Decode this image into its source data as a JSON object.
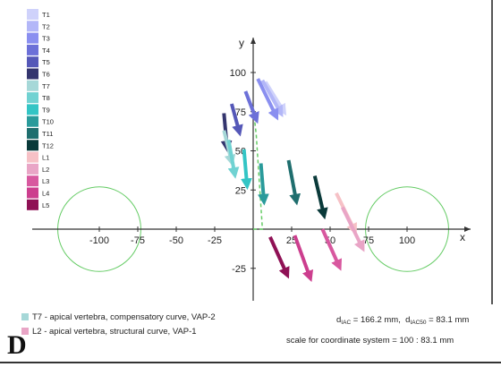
{
  "chart_data": {
    "type": "vector-field",
    "xlabel": "x",
    "ylabel": "y",
    "xlim": [
      -150,
      150
    ],
    "ylim": [
      -35,
      135
    ],
    "x_ticks": [
      -100,
      -75,
      -50,
      -25,
      25,
      50,
      75,
      100
    ],
    "y_ticks": [
      100,
      75,
      50,
      25,
      -25
    ],
    "circles": [
      {
        "center": [
          -100,
          0
        ],
        "radius": 27
      },
      {
        "center": [
          100,
          0
        ],
        "radius": 27
      }
    ],
    "vectors": [
      {
        "name": "T1",
        "color": "#cfd2fb",
        "from": [
          8,
          94
        ],
        "to": [
          20,
          75
        ]
      },
      {
        "name": "T2",
        "color": "#b3b7f8",
        "from": [
          6,
          95
        ],
        "to": [
          18,
          74
        ]
      },
      {
        "name": "T3",
        "color": "#8a8ff0",
        "from": [
          3,
          96
        ],
        "to": [
          15,
          72
        ]
      },
      {
        "name": "T4",
        "color": "#6c70d8",
        "from": [
          -5,
          88
        ],
        "to": [
          2,
          70
        ]
      },
      {
        "name": "T5",
        "color": "#5558b8",
        "from": [
          -14,
          80
        ],
        "to": [
          -9,
          62
        ]
      },
      {
        "name": "T6",
        "color": "#34356e",
        "from": [
          -19,
          74
        ],
        "to": [
          -17,
          52
        ]
      },
      {
        "name": "T7",
        "color": "#a6d8d8",
        "from": [
          -19,
          63
        ],
        "to": [
          -14,
          43
        ]
      },
      {
        "name": "T8",
        "color": "#70d2d2",
        "from": [
          -16,
          57
        ],
        "to": [
          -12,
          35
        ]
      },
      {
        "name": "T9",
        "color": "#33c5c5",
        "from": [
          -6,
          51
        ],
        "to": [
          -4,
          28
        ]
      },
      {
        "name": "T10",
        "color": "#2a9b9b",
        "from": [
          5,
          42
        ],
        "to": [
          7,
          18
        ]
      },
      {
        "name": "T11",
        "color": "#1f6e6e",
        "from": [
          23,
          44
        ],
        "to": [
          28,
          18
        ]
      },
      {
        "name": "T12",
        "color": "#0a3a3a",
        "from": [
          40,
          34
        ],
        "to": [
          46,
          9
        ]
      },
      {
        "name": "L1",
        "color": "#f6c1c6",
        "from": [
          54,
          23
        ],
        "to": [
          66,
          -1
        ]
      },
      {
        "name": "L2",
        "color": "#e9a5c6",
        "from": [
          58,
          14
        ],
        "to": [
          71,
          -12
        ]
      },
      {
        "name": "L3",
        "color": "#d8589f",
        "from": [
          45,
          0
        ],
        "to": [
          56,
          -24
        ]
      },
      {
        "name": "L4",
        "color": "#cc3e8e",
        "from": [
          27,
          -4
        ],
        "to": [
          37,
          -31
        ]
      },
      {
        "name": "L5",
        "color": "#8f1155",
        "from": [
          11,
          -5
        ],
        "to": [
          22,
          -29
        ]
      }
    ],
    "dashed_path": {
      "color": "#66cc66",
      "points": [
        [
          0,
          0
        ],
        [
          6,
          0
        ],
        [
          4,
          30
        ],
        [
          2,
          60
        ],
        [
          0,
          78
        ]
      ]
    },
    "legend": [
      {
        "label": "T1",
        "color": "#cfd2fb"
      },
      {
        "label": "T2",
        "color": "#b3b7f8"
      },
      {
        "label": "T3",
        "color": "#8a8ff0"
      },
      {
        "label": "T4",
        "color": "#6c70d8"
      },
      {
        "label": "T5",
        "color": "#5558b8"
      },
      {
        "label": "T6",
        "color": "#34356e"
      },
      {
        "label": "T7",
        "color": "#a6d8d8"
      },
      {
        "label": "T8",
        "color": "#70d2d2"
      },
      {
        "label": "T9",
        "color": "#33c5c5"
      },
      {
        "label": "T10",
        "color": "#2a9b9b"
      },
      {
        "label": "T11",
        "color": "#1f6e6e"
      },
      {
        "label": "T12",
        "color": "#0a3a3a"
      },
      {
        "label": "L1",
        "color": "#f6c1c6"
      },
      {
        "label": "L2",
        "color": "#e9a5c6"
      },
      {
        "label": "L3",
        "color": "#d8589f"
      },
      {
        "label": "L4",
        "color": "#cc3e8e"
      },
      {
        "label": "L5",
        "color": "#8f1155"
      }
    ]
  },
  "notes": {
    "t7": {
      "color": "#a6d8d8",
      "text": "T7 - apical vertebra, compensatory curve, VAP-2"
    },
    "l2": {
      "color": "#e9a5c6",
      "text": "L2 - apical vertebra, structural curve, VAP-1"
    }
  },
  "distances": {
    "d1_main": "d",
    "d1_sub": "IAC",
    "d1_value": " = 166.2 mm,",
    "d2_main": "d",
    "d2_sub": "IAC50",
    "d2_value": " = 83.1 mm"
  },
  "scale_text": "scale for coordinate system = 100 : 83.1 mm",
  "panel_letter": "D",
  "colors": {
    "axis": "#333333",
    "circle": "#66cc66"
  }
}
